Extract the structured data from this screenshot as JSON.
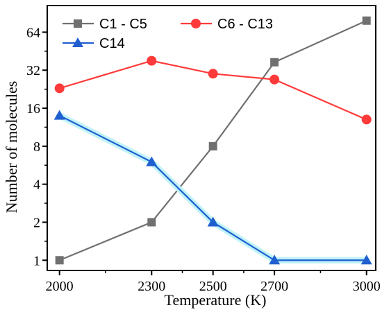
{
  "chart_data": {
    "type": "line",
    "title": "",
    "xlabel": "Temperature (K)",
    "ylabel": "Number of molecules",
    "x": [
      2000,
      2300,
      2500,
      2700,
      3000
    ],
    "x_ticks": [
      "2000",
      "2300",
      "2500",
      "2700",
      "3000"
    ],
    "y_ticks": [
      "1",
      "2",
      "4",
      "8",
      "16",
      "32",
      "64"
    ],
    "y_tick_values": [
      1,
      2,
      4,
      8,
      16,
      32,
      64
    ],
    "y_scale": "log2",
    "xlim": [
      1960,
      3030
    ],
    "ylim": [
      0.83,
      104
    ],
    "legend_placement": "top",
    "grid": false,
    "series": [
      {
        "name": "C1 - C5",
        "color": "#707070",
        "marker": "square",
        "values": [
          1,
          2,
          8,
          37,
          79
        ]
      },
      {
        "name": "C6 - C13",
        "color": "#ff3a3a",
        "marker": "circle",
        "values": [
          23,
          38,
          30,
          27,
          13
        ]
      },
      {
        "name": "C14",
        "color": "#1f5fd0",
        "marker": "triangle",
        "values": [
          14,
          6,
          2,
          1,
          1
        ]
      }
    ]
  }
}
